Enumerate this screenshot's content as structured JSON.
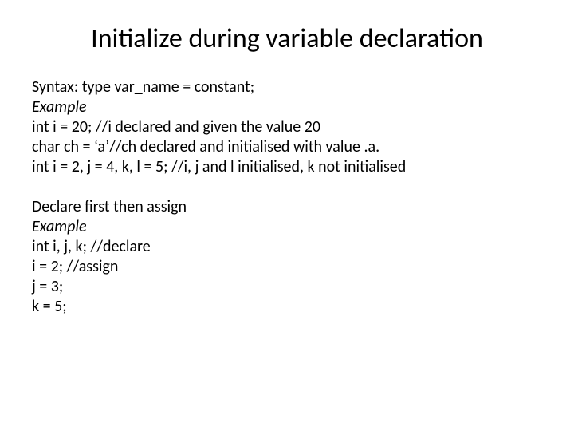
{
  "title": "Initialize during variable declaration",
  "lines": {
    "syntax": "Syntax: type var_name = constant;",
    "example1_label": "Example",
    "l1": "int i = 20; //i declared and given the value 20",
    "l2": "char ch = ‘a’//ch declared and initialised with value .a.",
    "l3": "int i = 2, j = 4, k, l = 5; //i, j and l initialised, k not initialised",
    "declare_first": "Declare first then assign",
    "example2_label": "Example",
    "l4": "int i, j, k; //declare",
    "l5": "i = 2; //assign",
    "l6": "j = 3;",
    "l7": "k = 5;"
  },
  "styling": {
    "title_fontsize": 34,
    "body_fontsize": 20,
    "background_color": "#ffffff",
    "text_color": "#000000",
    "font_family": "Calibri"
  }
}
